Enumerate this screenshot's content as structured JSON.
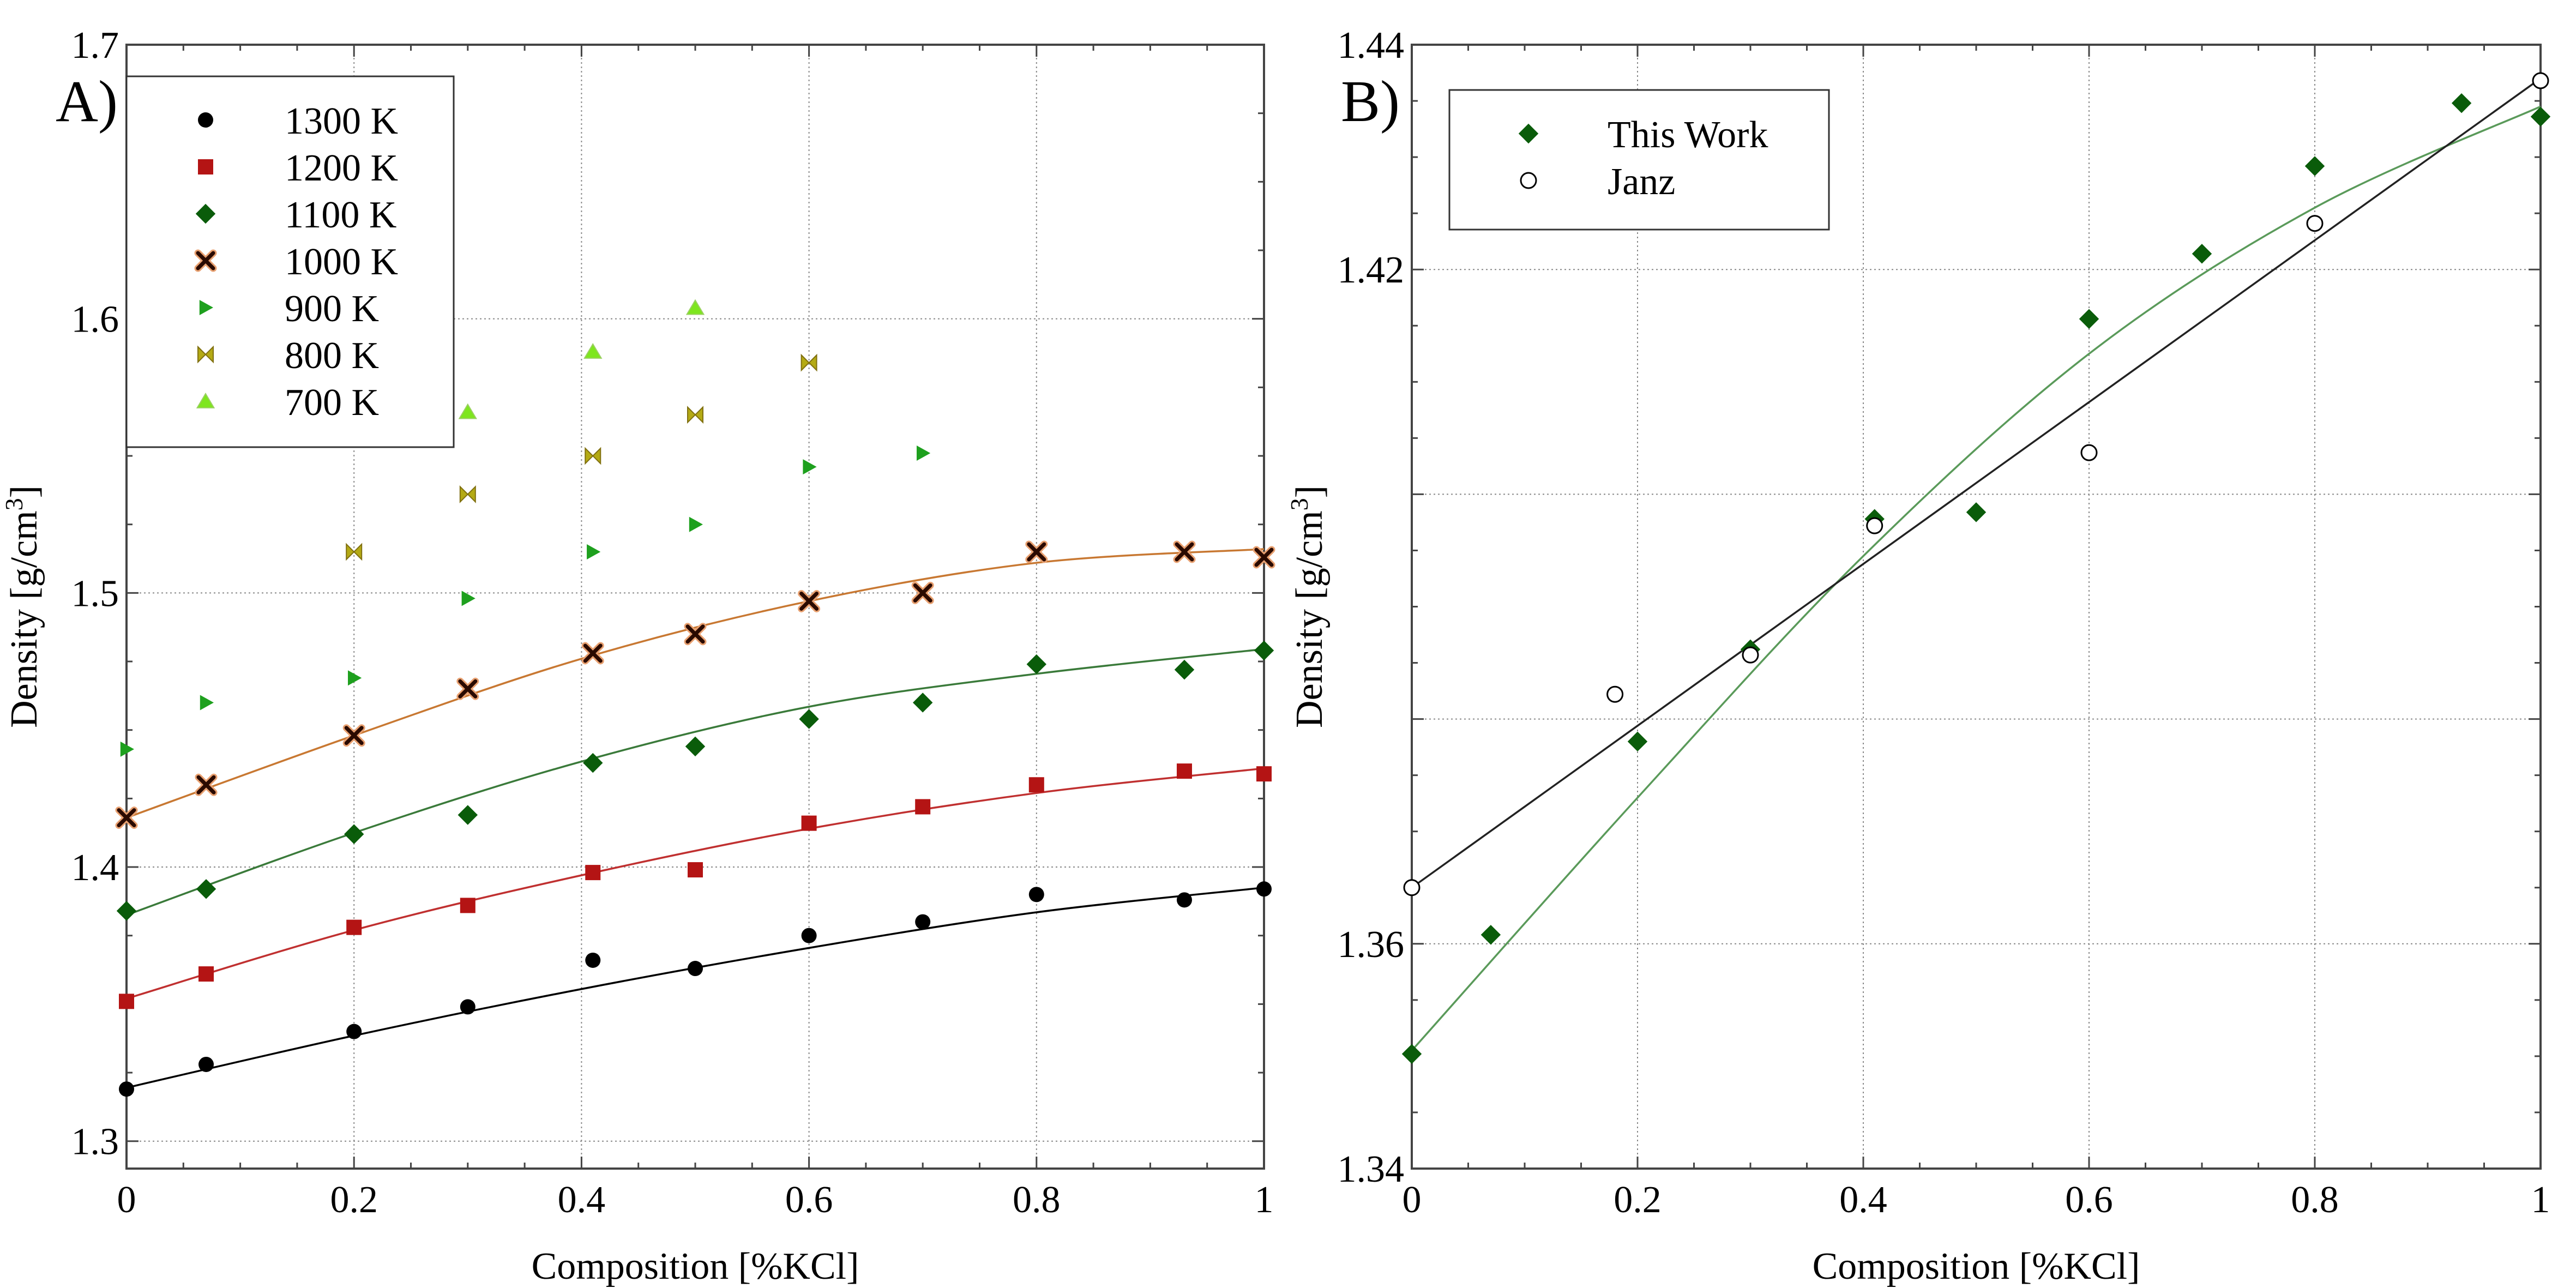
{
  "chart_data": [
    {
      "type": "scatter",
      "panel_label": "A)",
      "xlabel": "Composition [%KCl]",
      "ylabel": "Density [g/cm",
      "ylabel_sup": "3",
      "ylabel_end": "]",
      "xlim": [
        0,
        1
      ],
      "ylim": [
        1.29,
        1.7
      ],
      "xticks": [
        0,
        0.2,
        0.4,
        0.6,
        0.8,
        1
      ],
      "xtick_labels": [
        "0",
        "0.2",
        "0.4",
        "0.6",
        "0.8",
        "1"
      ],
      "yticks": [
        1.3,
        1.4,
        1.5,
        1.6,
        1.7
      ],
      "ytick_labels": [
        "1.3",
        "1.4",
        "1.5",
        "1.6",
        "1.7"
      ],
      "grid": true,
      "legend_position": "top-left",
      "series": [
        {
          "name": "1300 K",
          "marker": "circle",
          "color": "#000000",
          "fit_color": "#000000",
          "x": [
            0,
            0.07,
            0.2,
            0.3,
            0.41,
            0.5,
            0.6,
            0.7,
            0.8,
            0.93,
            1
          ],
          "y": [
            1.319,
            1.328,
            1.34,
            1.349,
            1.366,
            1.363,
            1.375,
            1.38,
            1.39,
            1.388,
            1.392
          ],
          "fit": [
            1.3195,
            1.3385,
            1.3555,
            1.3705,
            1.3835,
            1.3925
          ]
        },
        {
          "name": "1200 K",
          "marker": "square",
          "color": "#b41414",
          "fit_color": "#c03030",
          "x": [
            0,
            0.07,
            0.2,
            0.3,
            0.41,
            0.5,
            0.6,
            0.7,
            0.8,
            0.93,
            1
          ],
          "y": [
            1.351,
            1.361,
            1.378,
            1.386,
            1.398,
            1.399,
            1.416,
            1.422,
            1.43,
            1.435,
            1.434
          ],
          "fit": [
            1.352,
            1.377,
            1.397,
            1.414,
            1.427,
            1.436
          ]
        },
        {
          "name": "1100 K",
          "marker": "diamond",
          "color": "#0a5c0a",
          "fit_color": "#3a7a3a",
          "x": [
            0,
            0.07,
            0.2,
            0.3,
            0.41,
            0.5,
            0.6,
            0.7,
            0.8,
            0.93,
            1
          ],
          "y": [
            1.384,
            1.392,
            1.412,
            1.419,
            1.438,
            1.444,
            1.454,
            1.46,
            1.474,
            1.472,
            1.479
          ],
          "fit": [
            1.3825,
            1.4125,
            1.4385,
            1.4585,
            1.4705,
            1.4795
          ]
        },
        {
          "name": "1000 K",
          "marker": "cross",
          "color": "#2a0a00",
          "fit_color": "#c87832",
          "x": [
            0,
            0.07,
            0.2,
            0.3,
            0.41,
            0.5,
            0.6,
            0.7,
            0.8,
            0.93,
            1
          ],
          "y": [
            1.418,
            1.43,
            1.448,
            1.465,
            1.478,
            1.485,
            1.497,
            1.5,
            1.515,
            1.515,
            1.513
          ],
          "fit": [
            1.418,
            1.448,
            1.476,
            1.497,
            1.511,
            1.516
          ]
        },
        {
          "name": "900 K",
          "marker": "triangle-right",
          "color": "#1ea01e",
          "x": [
            0,
            0.07,
            0.2,
            0.3,
            0.41,
            0.5,
            0.6,
            0.7
          ],
          "y": [
            1.443,
            1.46,
            1.469,
            1.498,
            1.515,
            1.525,
            1.546,
            1.551
          ]
        },
        {
          "name": "800 K",
          "marker": "bowtie",
          "color": "#b4aa14",
          "x": [
            0.2,
            0.3,
            0.41,
            0.5,
            0.6
          ],
          "y": [
            1.515,
            1.536,
            1.55,
            1.565,
            1.584
          ]
        },
        {
          "name": "700 K",
          "marker": "triangle-up",
          "color": "#7ee61e",
          "x": [
            0.3,
            0.41,
            0.5
          ],
          "y": [
            1.566,
            1.588,
            1.604
          ]
        }
      ]
    },
    {
      "type": "scatter",
      "panel_label": "B)",
      "xlabel": "Composition [%KCl]",
      "ylabel": "Density [g/cm",
      "ylabel_sup": "3",
      "ylabel_end": "]",
      "xlim": [
        0,
        1
      ],
      "ylim": [
        1.34,
        1.44
      ],
      "xticks": [
        0,
        0.2,
        0.4,
        0.6,
        0.8,
        1
      ],
      "xtick_labels": [
        "0",
        "0.2",
        "0.4",
        "0.6",
        "0.8",
        "1"
      ],
      "yticks": [
        1.34,
        1.36,
        1.42,
        1.44
      ],
      "ytick_labels": [
        "1.34",
        "1.36",
        "1.42",
        "1.44"
      ],
      "grid_y": [
        1.34,
        1.36,
        1.38,
        1.4,
        1.42,
        1.44
      ],
      "grid": true,
      "legend_position": "top-left",
      "series": [
        {
          "name": "This Work",
          "marker": "diamond",
          "color": "#0a5c0a",
          "fit_color": "#5a9a5a",
          "x": [
            0,
            0.07,
            0.2,
            0.3,
            0.41,
            0.5,
            0.6,
            0.7,
            0.8,
            0.93,
            1
          ],
          "y": [
            1.3502,
            1.3608,
            1.378,
            1.3862,
            1.3978,
            1.3984,
            1.4156,
            1.4214,
            1.4292,
            1.4348,
            1.4336
          ],
          "fit": [
            1.3505,
            1.373,
            1.3945,
            1.4125,
            1.4255,
            1.4345
          ]
        },
        {
          "name": "Janz",
          "marker": "open-circle",
          "color": "#000000",
          "fit_color": "#222222",
          "x": [
            0,
            0.18,
            0.3,
            0.41,
            0.6,
            0.8,
            1
          ],
          "y": [
            1.365,
            1.3822,
            1.3857,
            1.3972,
            1.4037,
            1.4241,
            1.4368
          ],
          "fit": [
            1.365,
            1.3794,
            1.3938,
            1.4082,
            1.4226,
            1.437
          ]
        }
      ]
    }
  ]
}
